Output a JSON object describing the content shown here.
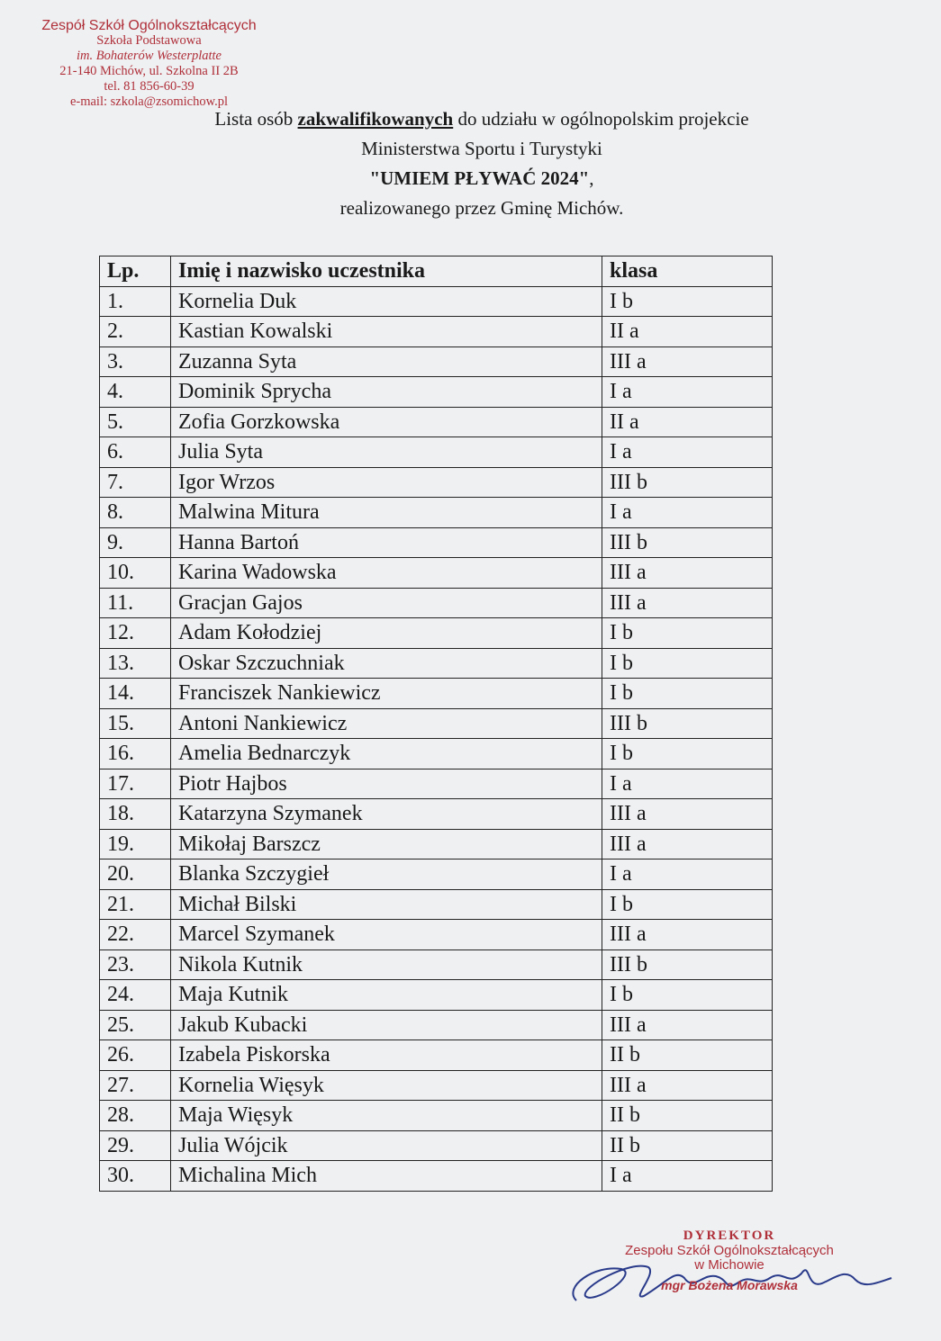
{
  "stamp": {
    "line1": "Zespół Szkół Ogólnokształcących",
    "line2": "Szkoła Podstawowa",
    "line3": "im. Bohaterów Westerplatte",
    "line4": "21-140 Michów, ul. Szkolna II 2B",
    "line5": "tel. 81 856-60-39",
    "line6": "e-mail: szkola@zsomichow.pl"
  },
  "heading": {
    "l1_pre": "Lista osób ",
    "l1_bold": "zakwalifikowanych",
    "l1_post": " do udziału w ogólnopolskim projekcie",
    "l2": "Ministerstwa Sportu i Turystyki",
    "l3_bold": "\"UMIEM PŁYWAĆ 2024\"",
    "l3_post": ",",
    "l4": "realizowanego przez Gminę Michów."
  },
  "table": {
    "headers": [
      "Lp.",
      "Imię i nazwisko uczestnika",
      "klasa"
    ],
    "rows": [
      [
        "1.",
        "Kornelia Duk",
        "I b"
      ],
      [
        "2.",
        "Kastian Kowalski",
        "II a"
      ],
      [
        "3.",
        "Zuzanna Syta",
        "III a"
      ],
      [
        "4.",
        "Dominik Sprycha",
        "I a"
      ],
      [
        "5.",
        "Zofia Gorzkowska",
        "II a"
      ],
      [
        "6.",
        "Julia Syta",
        "I a"
      ],
      [
        "7.",
        "Igor Wrzos",
        "III b"
      ],
      [
        "8.",
        "Malwina Mitura",
        "I a"
      ],
      [
        "9.",
        "Hanna Bartoń",
        "III b"
      ],
      [
        "10.",
        "Karina Wadowska",
        "III a"
      ],
      [
        "11.",
        "Gracjan Gajos",
        "III a"
      ],
      [
        "12.",
        "Adam Kołodziej",
        "I b"
      ],
      [
        "13.",
        "Oskar Szczuchniak",
        "I b"
      ],
      [
        "14.",
        "Franciszek Nankiewicz",
        "I b"
      ],
      [
        "15.",
        "Antoni Nankiewicz",
        "III b"
      ],
      [
        "16.",
        "Amelia Bednarczyk",
        "I b"
      ],
      [
        "17.",
        "Piotr Hajbos",
        "I a"
      ],
      [
        "18.",
        "Katarzyna Szymanek",
        "III a"
      ],
      [
        "19.",
        "Mikołaj Barszcz",
        "III a"
      ],
      [
        "20.",
        "Blanka Szczygieł",
        "I a"
      ],
      [
        "21.",
        "Michał Bilski",
        "I b"
      ],
      [
        "22.",
        "Marcel Szymanek",
        "III a"
      ],
      [
        "23.",
        "Nikola Kutnik",
        "III b"
      ],
      [
        "24.",
        "Maja Kutnik",
        "I b"
      ],
      [
        "25.",
        "Jakub Kubacki",
        "III a"
      ],
      [
        "26.",
        "Izabela Piskorska",
        "II b"
      ],
      [
        "27.",
        "Kornelia Więsyk",
        "III a"
      ],
      [
        "28.",
        "Maja Więsyk",
        "II b"
      ],
      [
        "29.",
        "Julia Wójcik",
        "II b"
      ],
      [
        "30.",
        "Michalina Mich",
        "I a"
      ]
    ]
  },
  "signature": {
    "title": "DYREKTOR",
    "org": "Zespołu Szkół Ogólnokształcących",
    "place": "w Michowie",
    "name": "mgr Bożena Morawska"
  },
  "colors": {
    "stamp": "#b0303a",
    "signature_ink": "#2a3a8a"
  }
}
